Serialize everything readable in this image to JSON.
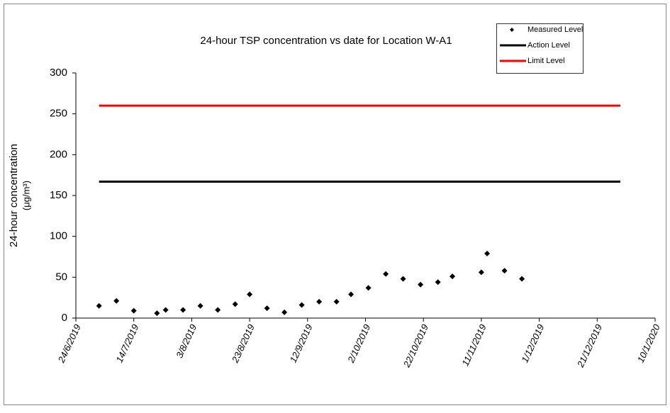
{
  "chart_data": {
    "type": "scatter",
    "title": "24-hour TSP concentration vs date for Location W-A1",
    "ylabel": "24-hour concentration",
    "ylabel_unit": "(μg/m³)",
    "xlim": [
      "2019-06-24",
      "2020-01-10"
    ],
    "xticks": [
      {
        "value": "2019-06-24",
        "label": "24/6/2019"
      },
      {
        "value": "2019-07-14",
        "label": "14/7/2019"
      },
      {
        "value": "2019-08-03",
        "label": "3/8/2019"
      },
      {
        "value": "2019-08-23",
        "label": "23/8/2019"
      },
      {
        "value": "2019-09-12",
        "label": "12/9/2019"
      },
      {
        "value": "2019-10-02",
        "label": "2/10/2019"
      },
      {
        "value": "2019-10-22",
        "label": "22/10/2019"
      },
      {
        "value": "2019-11-11",
        "label": "11/11/2019"
      },
      {
        "value": "2019-12-01",
        "label": "1/12/2019"
      },
      {
        "value": "2019-12-21",
        "label": "21/12/2019"
      },
      {
        "value": "2020-01-10",
        "label": "10/1/2020"
      }
    ],
    "ylim": [
      0,
      300
    ],
    "yticks": [
      0,
      50,
      100,
      150,
      200,
      250,
      300
    ],
    "series": [
      {
        "name": "Measured Level",
        "color": "#000000",
        "mode": "markers",
        "x": [
          "2019-07-02",
          "2019-07-08",
          "2019-07-14",
          "2019-07-22",
          "2019-07-25",
          "2019-07-31",
          "2019-08-06",
          "2019-08-12",
          "2019-08-18",
          "2019-08-23",
          "2019-08-29",
          "2019-09-04",
          "2019-09-10",
          "2019-09-16",
          "2019-09-22",
          "2019-09-27",
          "2019-10-03",
          "2019-10-09",
          "2019-10-15",
          "2019-10-21",
          "2019-10-27",
          "2019-11-01",
          "2019-11-11",
          "2019-11-13",
          "2019-11-19",
          "2019-11-25"
        ],
        "values": [
          15,
          21,
          9,
          6,
          10,
          10,
          15,
          10,
          17,
          29,
          12,
          7,
          16,
          20,
          20,
          29,
          37,
          54,
          48,
          41,
          44,
          51,
          56,
          79,
          58,
          48
        ]
      },
      {
        "name": "Action Level",
        "color": "#000000",
        "mode": "line",
        "x": [
          "2019-07-02",
          "2019-12-29"
        ],
        "values": [
          167,
          167
        ]
      },
      {
        "name": "Limit Level",
        "color": "#ff0000",
        "mode": "line",
        "x": [
          "2019-07-02",
          "2019-12-29"
        ],
        "values": [
          260,
          260
        ]
      }
    ]
  }
}
